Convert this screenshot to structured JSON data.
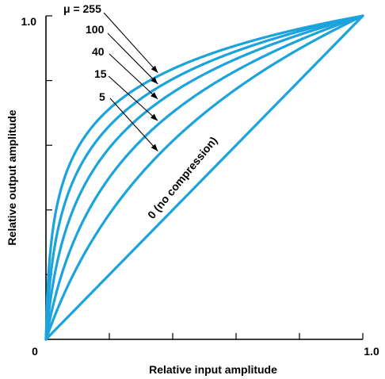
{
  "chart_data": {
    "type": "line",
    "title": "",
    "xlabel": "Relative input amplitude",
    "ylabel": "Relative output amplitude",
    "xlim": [
      0,
      1
    ],
    "ylim": [
      0,
      1
    ],
    "x_tick_labels": [
      "0",
      "1.0"
    ],
    "y_tick_labels": [
      "1.0"
    ],
    "x_ticks": [
      0,
      0.2,
      0.4,
      0.6,
      0.8,
      1.0
    ],
    "y_ticks": [
      0.2,
      0.4,
      0.6,
      0.8,
      1.0
    ],
    "grid": false,
    "line_color": "#1aa3dc",
    "series": [
      {
        "name": "μ = 255",
        "mu": 255,
        "x": [
          0,
          0.05,
          0.1,
          0.2,
          0.3,
          0.4,
          0.5,
          0.6,
          0.7,
          0.8,
          0.9,
          1.0
        ],
        "y": [
          0,
          0.54,
          0.66,
          0.79,
          0.86,
          0.91,
          0.94,
          0.96,
          0.97,
          0.98,
          0.99,
          1.0
        ]
      },
      {
        "name": "100",
        "mu": 100,
        "x": [
          0,
          0.05,
          0.1,
          0.2,
          0.3,
          0.4,
          0.5,
          0.6,
          0.7,
          0.8,
          0.9,
          1.0
        ],
        "y": [
          0,
          0.39,
          0.52,
          0.66,
          0.75,
          0.8,
          0.85,
          0.89,
          0.92,
          0.95,
          0.98,
          1.0
        ]
      },
      {
        "name": "40",
        "mu": 40,
        "x": [
          0,
          0.05,
          0.1,
          0.2,
          0.3,
          0.4,
          0.5,
          0.6,
          0.7,
          0.8,
          0.9,
          1.0
        ],
        "y": [
          0,
          0.3,
          0.43,
          0.58,
          0.67,
          0.74,
          0.8,
          0.85,
          0.89,
          0.93,
          0.97,
          1.0
        ]
      },
      {
        "name": "15",
        "mu": 15,
        "x": [
          0,
          0.05,
          0.1,
          0.2,
          0.3,
          0.4,
          0.5,
          0.6,
          0.7,
          0.8,
          0.9,
          1.0
        ],
        "y": [
          0,
          0.19,
          0.31,
          0.47,
          0.58,
          0.66,
          0.74,
          0.8,
          0.86,
          0.91,
          0.96,
          1.0
        ]
      },
      {
        "name": "5",
        "mu": 5,
        "x": [
          0,
          0.05,
          0.1,
          0.2,
          0.3,
          0.4,
          0.5,
          0.6,
          0.7,
          0.8,
          0.9,
          1.0
        ],
        "y": [
          0,
          0.11,
          0.21,
          0.35,
          0.46,
          0.56,
          0.64,
          0.72,
          0.8,
          0.87,
          0.94,
          1.0
        ]
      },
      {
        "name": "0 (no compression)",
        "mu": 0,
        "x": [
          0,
          1.0
        ],
        "y": [
          0,
          1.0
        ]
      }
    ],
    "annotations": [
      {
        "text": "μ = 255",
        "series": 0,
        "points_to_x": 0.36
      },
      {
        "text": "100",
        "series": 1,
        "points_to_x": 0.36
      },
      {
        "text": "40",
        "series": 2,
        "points_to_x": 0.36
      },
      {
        "text": "15",
        "series": 3,
        "points_to_x": 0.36
      },
      {
        "text": "5",
        "series": 4,
        "points_to_x": 0.36
      },
      {
        "text": "0 (no compression)",
        "series": 5
      }
    ]
  }
}
